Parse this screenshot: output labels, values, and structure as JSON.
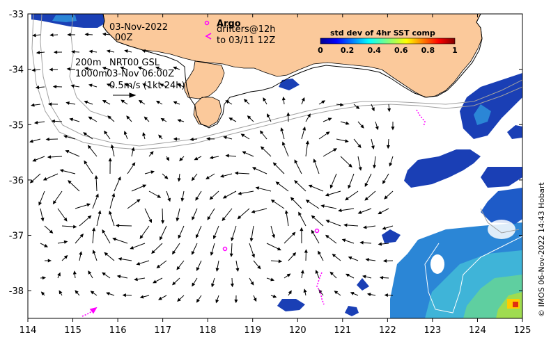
{
  "map": {
    "x_ticks": [
      "114",
      "115",
      "116",
      "117",
      "118",
      "119",
      "120",
      "121",
      "122",
      "123",
      "124",
      "125"
    ],
    "y_ticks": [
      "-33",
      "-34",
      "-35",
      "-36",
      "-37",
      "-38"
    ],
    "lon_range": [
      114,
      125
    ],
    "lat_range": [
      -38.5,
      -33
    ]
  },
  "annotations": {
    "date_line": "03-Nov-2022",
    "time_line": "00Z",
    "depth_200": "200m",
    "depth_1000": "1000m",
    "product": "NRT00 GSL",
    "product_time": "03-Nov 06:00Z",
    "scale_vector": "0.5m/s (1kt 24h)",
    "argo_label": "Argo",
    "drifters_line1": "drifters@12h",
    "drifters_line2": "to 03/11 12Z"
  },
  "colorbar": {
    "title": "std dev of 4hr SST comp",
    "ticks": [
      "0",
      "0.2",
      "0.4",
      "0.6",
      "0.8",
      "1"
    ],
    "range": [
      0,
      1
    ]
  },
  "credit": "© IMOS 06-Nov-2022 14:43 Hobart",
  "colors": {
    "land": "#fbc99b",
    "argo": "#ff00ff",
    "drifter": "#ff00ff",
    "isobath": "#a0a0a0"
  }
}
